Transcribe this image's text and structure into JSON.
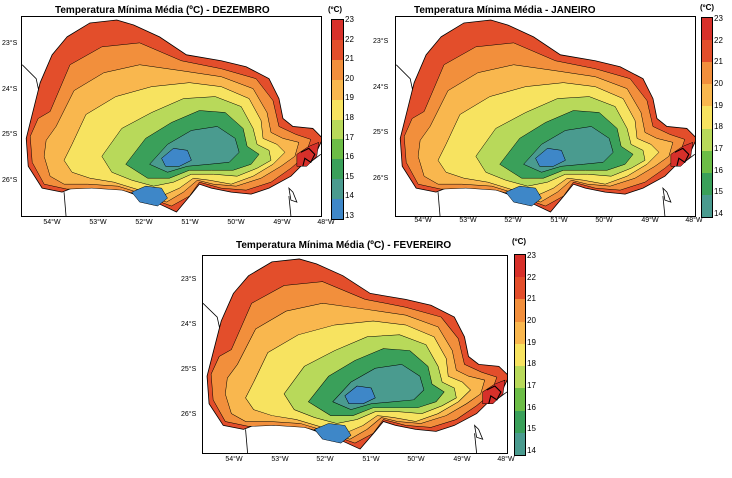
{
  "maps": [
    {
      "title": "Temperatura Mínima Média (ºC) - DEZEMBRO"
    },
    {
      "title": "Temperatura Mínima Média - JANEIRO"
    },
    {
      "title": "Temperatura Mínima Média (ºC) - FEVEREIRO"
    }
  ],
  "lat_labels": [
    "23°S",
    "24°S",
    "25°S",
    "26°S"
  ],
  "lon_labels": [
    "54°W",
    "53°W",
    "52°W",
    "51°W",
    "50°W",
    "49°W",
    "48°W"
  ],
  "colorbar": {
    "unit": "(ºC)",
    "ticks": [
      "23",
      "22",
      "21",
      "20",
      "19",
      "18",
      "17",
      "16",
      "15",
      "14",
      "13"
    ],
    "ticks_short": [
      "23",
      "22",
      "21",
      "20",
      "19",
      "18",
      "17",
      "16",
      "15",
      "14"
    ],
    "colors": [
      "#d7302a",
      "#e34e2b",
      "#f28f3c",
      "#f9b74e",
      "#f7e360",
      "#b8d95a",
      "#6cbd46",
      "#3aa05a",
      "#4a9b8f",
      "#3e87c8",
      "#84b8e0",
      "#c3e2f3"
    ]
  }
}
